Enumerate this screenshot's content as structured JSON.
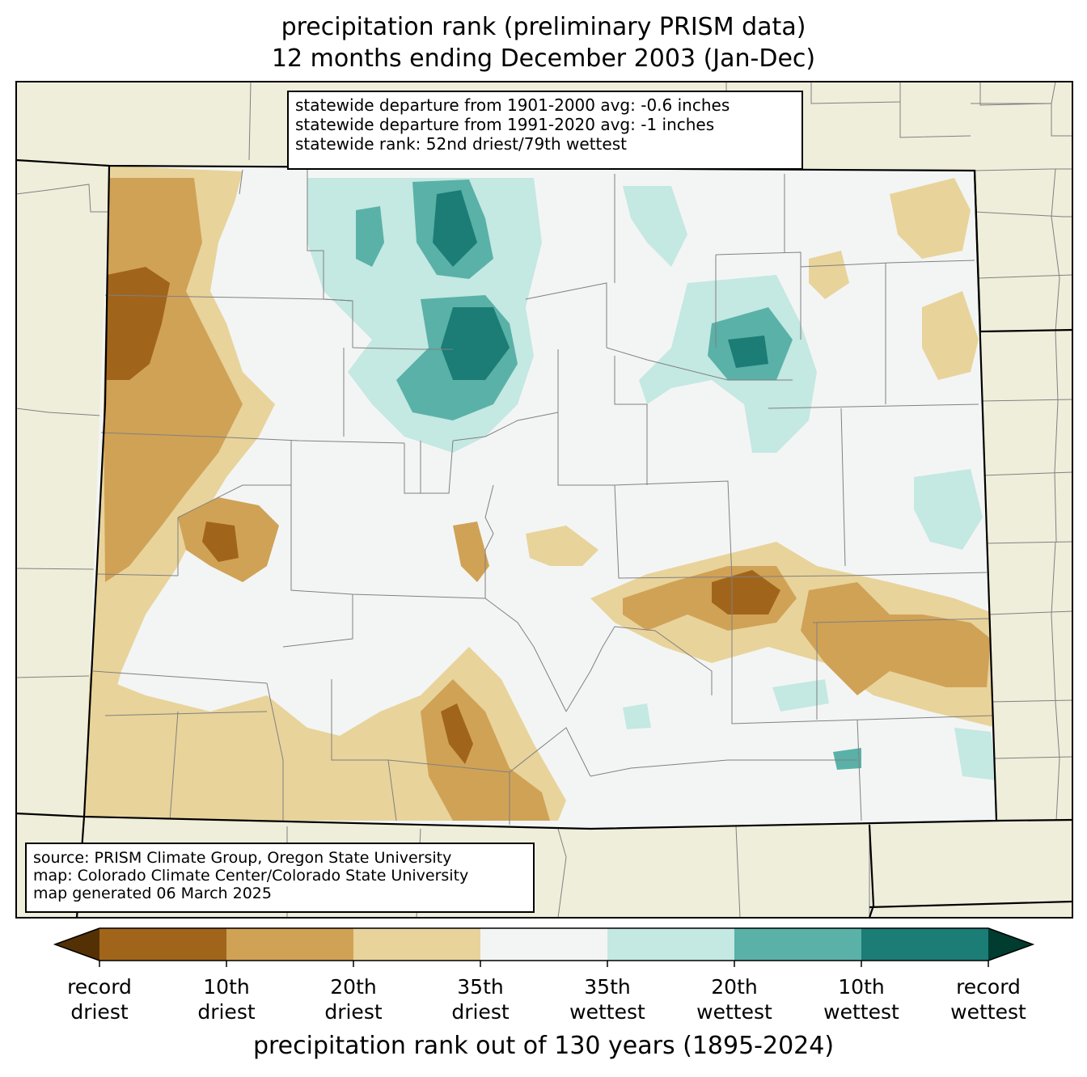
{
  "title_line1": "precipitation rank (preliminary PRISM data)",
  "title_line2": "12 months ending December 2003 (Jan-Dec)",
  "stats_box": [
    "statewide departure from 1901-2000 avg: -0.6 inches",
    "statewide departure from 1991-2020 avg: -1 inches",
    "statewide rank: 52nd driest/79th wettest"
  ],
  "source_box": [
    "source: PRISM Climate Group, Oregon State University",
    "map: Colorado Climate Center/Colorado State University",
    "map generated 06 March 2025"
  ],
  "colorbar": {
    "title": "precipitation rank out of 130 years (1895-2024)",
    "ticks": [
      {
        "line1": "record",
        "line2": "driest"
      },
      {
        "line1": "10th",
        "line2": "driest"
      },
      {
        "line1": "20th",
        "line2": "driest"
      },
      {
        "line1": "35th",
        "line2": "driest"
      },
      {
        "line1": "35th",
        "line2": "wettest"
      },
      {
        "line1": "20th",
        "line2": "wettest"
      },
      {
        "line1": "10th",
        "line2": "wettest"
      },
      {
        "line1": "record",
        "line2": "wettest"
      }
    ],
    "colors": {
      "under": "#543005",
      "c1": "#a0651b",
      "c2": "#d0a256",
      "c3": "#e8d39b",
      "c4": "#f3f5f4",
      "c5": "#c4e8e2",
      "c6": "#5ab1a8",
      "c7": "#1b7d75",
      "over": "#003c30"
    }
  },
  "colors": {
    "background_land": "#efeedb",
    "state_border": "#000000",
    "county_border": "#808080"
  }
}
